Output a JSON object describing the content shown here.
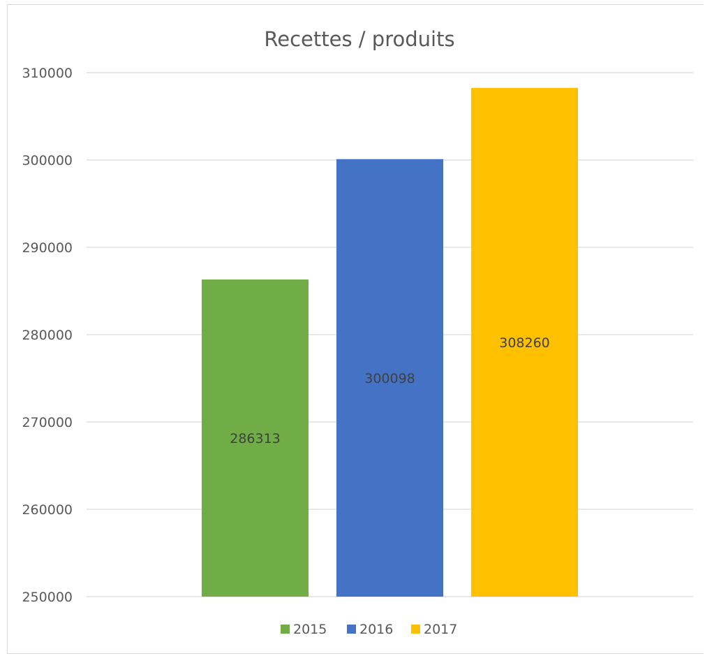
{
  "chart_data": {
    "type": "bar",
    "title": "Recettes / produits",
    "xlabel": "",
    "ylabel": "",
    "ylim": [
      250000,
      310000
    ],
    "yticks": [
      250000,
      260000,
      270000,
      280000,
      290000,
      300000,
      310000
    ],
    "grid": true,
    "legend_position": "bottom",
    "categories": [
      ""
    ],
    "series": [
      {
        "name": "2015",
        "values": [
          286313
        ],
        "color": "#70AD47"
      },
      {
        "name": "2016",
        "values": [
          300098
        ],
        "color": "#4472C4"
      },
      {
        "name": "2017",
        "values": [
          308260
        ],
        "color": "#FFC000"
      }
    ],
    "data_labels": true
  }
}
